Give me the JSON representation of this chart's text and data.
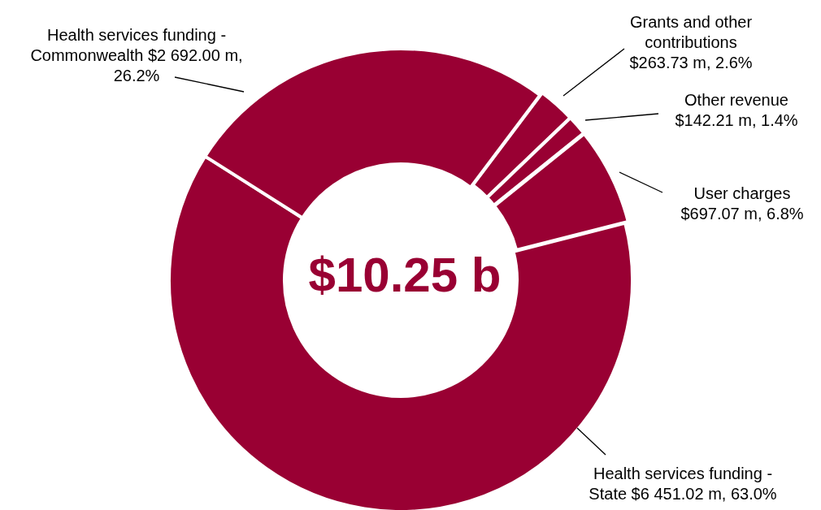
{
  "chart_data": {
    "type": "donut",
    "title": "$10.25 b",
    "categories": [
      "Grants and other contributions",
      "Other revenue",
      "User charges",
      "Health services funding - State",
      "Health services funding - Commonwealth"
    ],
    "values": [
      263.73,
      142.21,
      697.07,
      6451.02,
      2692.0
    ],
    "value_labels": [
      "$263.73 m, 2.6%",
      "$142.21 m, 1.4%",
      "$697.07 m, 6.8%",
      "$6 451.02 m, 63.0%",
      "$2 692.00 m, 26.2%"
    ],
    "colors": [
      "#990033",
      "#990033",
      "#990033",
      "#990033",
      "#990033"
    ]
  }
}
